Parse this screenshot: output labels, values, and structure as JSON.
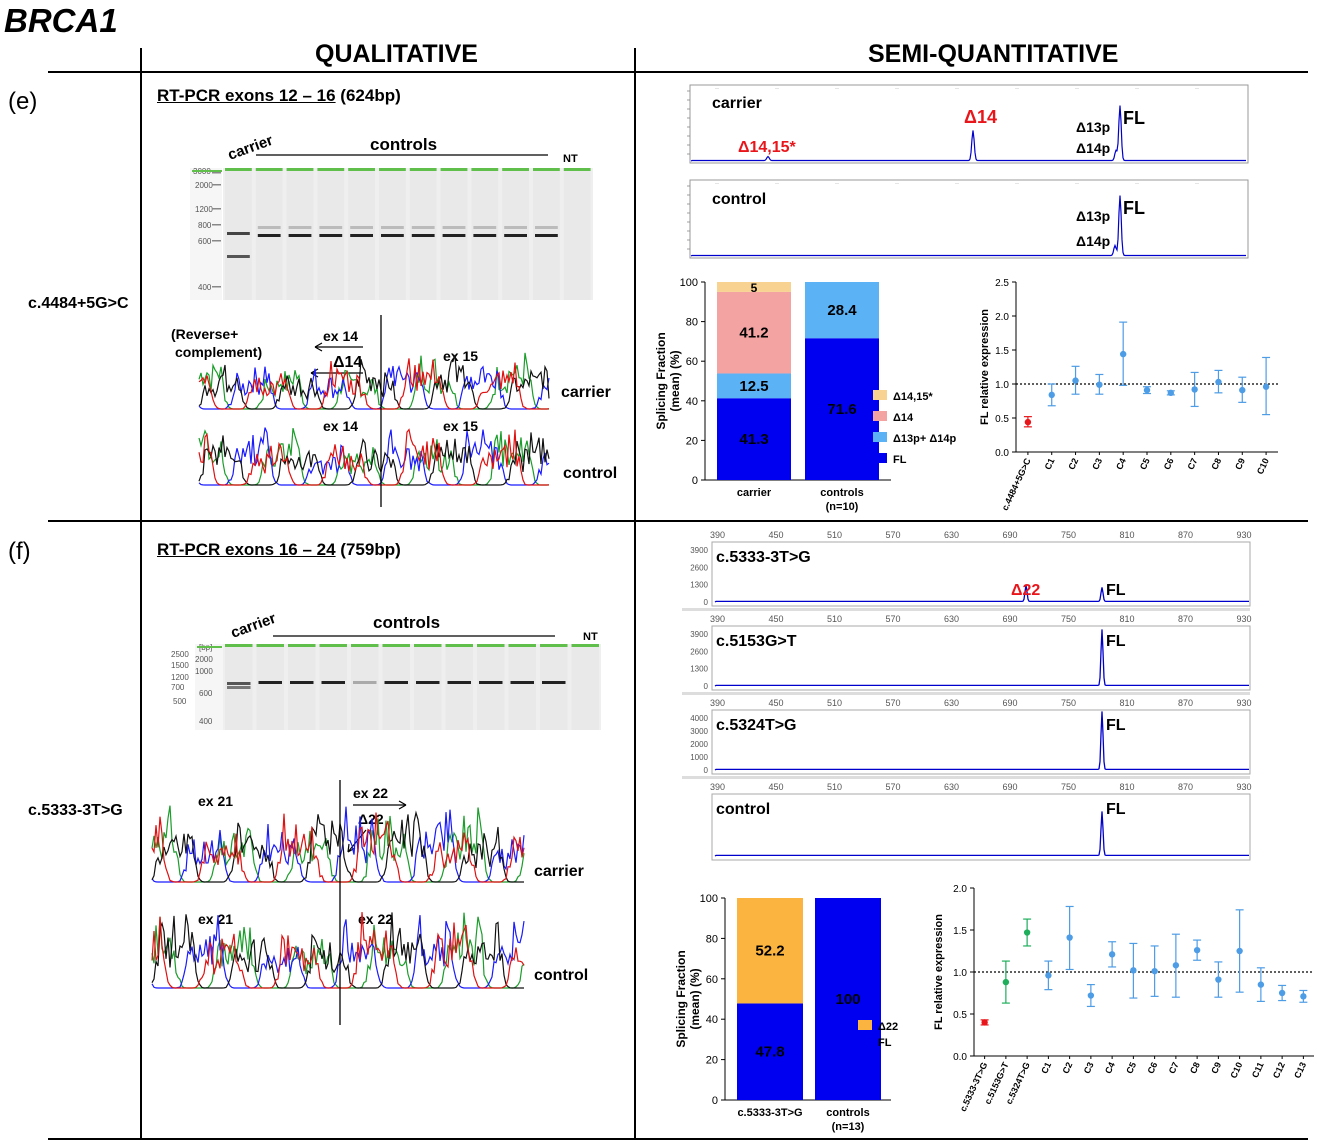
{
  "title": "BRCA1",
  "columns": {
    "left": "QUALITATIVE",
    "right": "SEMI-QUANTITATIVE"
  },
  "panel_e": {
    "label": "(e)",
    "variant": "c.4484+5G>C",
    "rtpcr_underlined": "RT-PCR exons 12 – 16",
    "rtpcr_size": " (624bp)",
    "gel": {
      "carrier": "carrier",
      "controls": "controls",
      "nt": "NT",
      "ladder": [
        "3000",
        "2000",
        "1200",
        "800",
        "600",
        "400"
      ]
    },
    "seq": {
      "reverse_note_1": "(Reverse+",
      "reverse_note_2": "complement)",
      "ex14_arrow": "ex 14",
      "d14_arrow": "Δ14",
      "ex15": "ex 15",
      "ex14": "ex 14",
      "ex15b": "ex 15",
      "carrier": "carrier",
      "control": "control"
    },
    "electro": {
      "carrier_label": "carrier",
      "control_label": "control",
      "peak_d1415": "Δ14,15*",
      "peak_d14": "Δ14",
      "peak_d13p": "Δ13p",
      "peak_d14p": "Δ14p",
      "peak_fl": "FL"
    },
    "red_color": "#e8161b",
    "blue_color": "#0000ff"
  },
  "panel_f": {
    "label": "(f)",
    "variant": "c.5333-3T>G",
    "rtpcr_underlined": "RT-PCR exons 16 – 24",
    "rtpcr_size": " (759bp)",
    "gel": {
      "carrier": "carrier",
      "controls": "controls",
      "nt": "NT",
      "ladder": [
        "[bp]",
        "2500",
        "1500",
        "1200",
        "700",
        "600",
        "500",
        "400"
      ],
      "ladder_b": [
        "2000",
        "1000"
      ]
    },
    "seq": {
      "ex21": "ex 21",
      "ex22_arrow": "ex 22",
      "d22": "Δ22",
      "ex21b": "ex 21",
      "ex22b": "ex 22",
      "carrier": "carrier",
      "control": "control"
    },
    "electro": {
      "axis_ticks": [
        "390",
        "450",
        "510",
        "570",
        "630",
        "690",
        "750",
        "810",
        "870",
        "930"
      ],
      "traces": [
        {
          "label": "c.5333-3T>G",
          "y_ticks": [
            "3900",
            "2600",
            "1300",
            "0"
          ]
        },
        {
          "label": "c.5153G>T",
          "y_ticks": [
            "3900",
            "2600",
            "1300",
            "0"
          ]
        },
        {
          "label": "c.5324T>G",
          "y_ticks": [
            "4000",
            "3000",
            "2000",
            "1000",
            "0"
          ]
        },
        {
          "label": "control",
          "y_ticks": []
        }
      ],
      "peak_d22": "Δ22",
      "peak_fl": "FL"
    }
  },
  "chart_data": [
    {
      "type": "bar",
      "stacked": true,
      "ylabel": "Splicing Fraction (mean) (%)",
      "ylim": [
        0,
        100
      ],
      "y_ticks": [
        0,
        20,
        40,
        60,
        80,
        100
      ],
      "categories": [
        "carrier",
        "controls"
      ],
      "categories_sub": [
        "",
        "(n=10)"
      ],
      "series": [
        {
          "name": "FL",
          "color": "#0000f0",
          "values": [
            41.3,
            71.6
          ]
        },
        {
          "name": "Δ13p+ Δ14p",
          "color": "#5bb2f5",
          "values": [
            12.5,
            28.4
          ]
        },
        {
          "name": "Δ14",
          "color": "#f4a3a3",
          "values": [
            41.2,
            0
          ]
        },
        {
          "name": "Δ14,15*",
          "color": "#f8d290",
          "values": [
            5,
            0
          ]
        }
      ],
      "legend": "right"
    },
    {
      "type": "scatter",
      "ylabel": "FL relative expression",
      "ylim": [
        0,
        2.5
      ],
      "y_ticks": [
        "0.0",
        "0.5",
        "1.0",
        "1.5",
        "2.0",
        "2.5"
      ],
      "reference_line": 1.0,
      "categories": [
        "c.4484+5G>C",
        "C1",
        "C2",
        "C3",
        "C4",
        "C5",
        "C6",
        "C7",
        "C8",
        "C9",
        "C10"
      ],
      "values": [
        0.44,
        0.84,
        1.05,
        0.99,
        1.44,
        0.91,
        0.87,
        0.92,
        1.03,
        0.91,
        0.96
      ],
      "err_low": [
        0.37,
        0.68,
        0.85,
        0.85,
        0.98,
        0.86,
        0.84,
        0.67,
        0.87,
        0.73,
        0.55
      ],
      "err_high": [
        0.52,
        1.0,
        1.26,
        1.14,
        1.91,
        0.96,
        0.9,
        1.17,
        1.2,
        1.1,
        1.39
      ],
      "colors": [
        "#e8161b",
        "#4d9ce6",
        "#4d9ce6",
        "#4d9ce6",
        "#4d9ce6",
        "#4d9ce6",
        "#4d9ce6",
        "#4d9ce6",
        "#4d9ce6",
        "#4d9ce6",
        "#4d9ce6"
      ]
    },
    {
      "type": "bar",
      "stacked": true,
      "ylabel": "Splicing Fraction (mean) (%)",
      "ylim": [
        0,
        100
      ],
      "y_ticks": [
        0,
        20,
        40,
        60,
        80,
        100
      ],
      "categories": [
        "c.5333-3T>G",
        "controls"
      ],
      "categories_sub": [
        "",
        "(n=13)"
      ],
      "series": [
        {
          "name": "FL",
          "color": "#0000f0",
          "values": [
            47.8,
            100
          ]
        },
        {
          "name": "Δ22",
          "color": "#fbb440",
          "values": [
            52.2,
            0
          ]
        }
      ],
      "legend": "right"
    },
    {
      "type": "scatter",
      "ylabel": "FL relative expression",
      "ylim": [
        0,
        2.0
      ],
      "y_ticks": [
        "0.0",
        "0.5",
        "1.0",
        "1.5",
        "2.0"
      ],
      "reference_line": 1.0,
      "categories": [
        "c.5333-3T>G",
        "c.5153G>T",
        "c.5324T>G",
        "C1",
        "C2",
        "C3",
        "C4",
        "C5",
        "C6",
        "C7",
        "C8",
        "C9",
        "C10",
        "C11",
        "C12",
        "C13"
      ],
      "values": [
        0.4,
        0.88,
        1.47,
        0.96,
        1.41,
        0.72,
        1.21,
        1.02,
        1.01,
        1.08,
        1.26,
        0.91,
        1.25,
        0.85,
        0.75,
        0.71
      ],
      "err_low": [
        0.37,
        0.63,
        1.31,
        0.79,
        1.03,
        0.59,
        1.06,
        0.69,
        0.71,
        0.7,
        1.14,
        0.7,
        0.76,
        0.65,
        0.66,
        0.64
      ],
      "err_high": [
        0.43,
        1.13,
        1.63,
        1.13,
        1.78,
        0.85,
        1.36,
        1.34,
        1.31,
        1.45,
        1.38,
        1.12,
        1.74,
        1.05,
        0.84,
        0.78
      ],
      "colors": [
        "#e8161b",
        "#1fae5c",
        "#1fae5c",
        "#4d9ce6",
        "#4d9ce6",
        "#4d9ce6",
        "#4d9ce6",
        "#4d9ce6",
        "#4d9ce6",
        "#4d9ce6",
        "#4d9ce6",
        "#4d9ce6",
        "#4d9ce6",
        "#4d9ce6",
        "#4d9ce6",
        "#4d9ce6"
      ]
    }
  ]
}
